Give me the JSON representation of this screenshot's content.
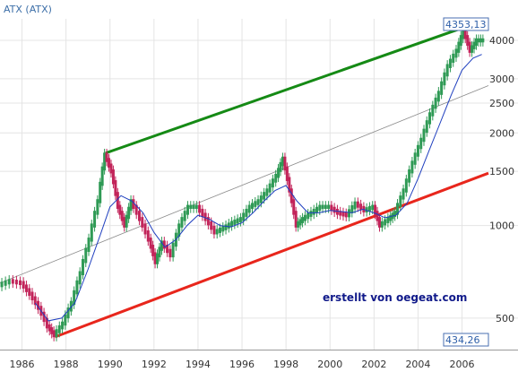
{
  "chart_data": {
    "type": "candlestick",
    "title": "ATX (ATX)",
    "y_scale": "log",
    "xlim": [
      1985.0,
      2007.2
    ],
    "ylim": [
      395,
      4700
    ],
    "x_ticks": [
      1986,
      1988,
      1990,
      1992,
      1994,
      1996,
      1998,
      2000,
      2002,
      2004,
      2006
    ],
    "y_ticks": [
      500,
      1000,
      1500,
      2000,
      2500,
      3000,
      4000
    ],
    "grid": true,
    "annotations": {
      "high_label": "4353,13",
      "low_label": "434,26",
      "credit": "erstellt von oegeat.com"
    },
    "trend_lines": [
      {
        "name": "upper channel",
        "color": "#158a15",
        "points": [
          [
            1989.8,
            1720
          ],
          [
            2007.2,
            4700
          ]
        ]
      },
      {
        "name": "lower channel",
        "color": "#e8261c",
        "points": [
          [
            1987.5,
            434.26
          ],
          [
            2007.2,
            1480
          ]
        ]
      },
      {
        "name": "mid line",
        "color": "#8a8a8a",
        "points": [
          [
            1985.0,
            650
          ],
          [
            2007.2,
            2850
          ]
        ]
      }
    ],
    "price_series": {
      "color_up": "#2f9a55",
      "color_down": "#c2245a",
      "x": [
        1985.0,
        1985.5,
        1986.0,
        1986.4,
        1986.8,
        1987.2,
        1987.5,
        1987.9,
        1988.3,
        1988.7,
        1989.1,
        1989.5,
        1989.8,
        1990.1,
        1990.4,
        1990.7,
        1991.0,
        1991.4,
        1991.8,
        1992.1,
        1992.4,
        1992.8,
        1993.2,
        1993.6,
        1994.0,
        1994.4,
        1994.8,
        1995.2,
        1995.6,
        1996.0,
        1996.4,
        1996.8,
        1997.2,
        1997.6,
        1997.9,
        1998.2,
        1998.5,
        1998.8,
        1999.2,
        1999.6,
        2000.0,
        2000.4,
        2000.8,
        2001.2,
        2001.6,
        2002.0,
        2002.3,
        2002.7,
        2003.0,
        2003.4,
        2003.8,
        2004.2,
        2004.6,
        2005.0,
        2005.4,
        2005.8,
        2006.1,
        2006.4,
        2006.7,
        2007.0
      ],
      "values": [
        640,
        660,
        650,
        600,
        540,
        470,
        440,
        480,
        560,
        700,
        900,
        1200,
        1700,
        1500,
        1150,
        1000,
        1200,
        1050,
        900,
        760,
        880,
        800,
        1000,
        1150,
        1150,
        1050,
        950,
        980,
        1020,
        1050,
        1150,
        1200,
        1300,
        1450,
        1650,
        1300,
        1000,
        1050,
        1100,
        1150,
        1150,
        1100,
        1080,
        1180,
        1120,
        1150,
        1000,
        1050,
        1100,
        1300,
        1600,
        1900,
        2300,
        2700,
        3300,
        3700,
        4300,
        3700,
        4000,
        4000
      ]
    },
    "moving_average": {
      "color": "#1f3fbf",
      "x": [
        1986.6,
        1987.2,
        1987.8,
        1988.4,
        1989.0,
        1989.6,
        1990.0,
        1990.5,
        1991.0,
        1991.5,
        1992.0,
        1992.5,
        1993.0,
        1993.5,
        1994.0,
        1994.5,
        1995.0,
        1995.5,
        1996.0,
        1996.5,
        1997.0,
        1997.5,
        1998.0,
        1998.5,
        1999.0,
        1999.5,
        2000.0,
        2000.5,
        2001.0,
        2001.5,
        2002.0,
        2002.5,
        2003.0,
        2003.5,
        2004.0,
        2004.5,
        2005.0,
        2005.5,
        2006.0,
        2006.5,
        2006.9
      ],
      "values": [
        560,
        490,
        500,
        560,
        720,
        950,
        1150,
        1250,
        1200,
        1100,
        950,
        850,
        900,
        1000,
        1080,
        1050,
        1000,
        990,
        1020,
        1100,
        1200,
        1300,
        1350,
        1200,
        1100,
        1100,
        1120,
        1110,
        1100,
        1130,
        1100,
        1060,
        1080,
        1180,
        1420,
        1750,
        2150,
        2650,
        3200,
        3500,
        3600
      ]
    }
  }
}
